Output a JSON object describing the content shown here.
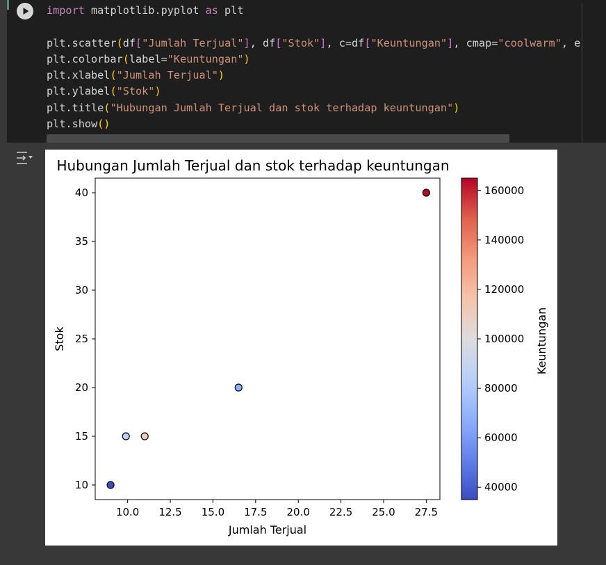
{
  "code_cell": {
    "run_button_icon": "play-icon",
    "lines": [
      [
        {
          "t": "import",
          "c": "kw"
        },
        {
          "t": " matplotlib.pyplot "
        },
        {
          "t": "as",
          "c": "kw"
        },
        {
          "t": " plt"
        }
      ],
      [],
      [
        {
          "t": "plt.scatter"
        },
        {
          "t": "(",
          "c": "p1"
        },
        {
          "t": "df"
        },
        {
          "t": "[",
          "c": "p2"
        },
        {
          "t": "\"Jumlah Terjual\"",
          "c": "str"
        },
        {
          "t": "]",
          "c": "p2"
        },
        {
          "t": ", df"
        },
        {
          "t": "[",
          "c": "p2"
        },
        {
          "t": "\"Stok\"",
          "c": "str"
        },
        {
          "t": "]",
          "c": "p2"
        },
        {
          "t": ", c=df"
        },
        {
          "t": "[",
          "c": "p2"
        },
        {
          "t": "\"Keuntungan\"",
          "c": "str"
        },
        {
          "t": "]",
          "c": "p2"
        },
        {
          "t": ", cmap="
        },
        {
          "t": "\"coolwarm\"",
          "c": "str"
        },
        {
          "t": ", e"
        }
      ],
      [
        {
          "t": "plt.colorbar"
        },
        {
          "t": "(",
          "c": "p1"
        },
        {
          "t": "label="
        },
        {
          "t": "\"Keuntungan\"",
          "c": "str"
        },
        {
          "t": ")",
          "c": "p1"
        }
      ],
      [
        {
          "t": "plt.xlabel"
        },
        {
          "t": "(",
          "c": "p1"
        },
        {
          "t": "\"Jumlah Terjual\"",
          "c": "str"
        },
        {
          "t": ")",
          "c": "p1"
        }
      ],
      [
        {
          "t": "plt.ylabel"
        },
        {
          "t": "(",
          "c": "p1"
        },
        {
          "t": "\"Stok\"",
          "c": "str"
        },
        {
          "t": ")",
          "c": "p1"
        }
      ],
      [
        {
          "t": "plt.title"
        },
        {
          "t": "(",
          "c": "p1"
        },
        {
          "t": "\"Hubungan Jumlah Terjual dan stok terhadap keuntungan\"",
          "c": "str"
        },
        {
          "t": ")",
          "c": "p1"
        }
      ],
      [
        {
          "t": "plt.show"
        },
        {
          "t": "()",
          "c": "p1"
        }
      ]
    ]
  },
  "output": {
    "icon": "output-toggle-icon"
  },
  "colors": {
    "code_background": "#1e1e1e",
    "page_background": "#383838",
    "keyword": "#c586c0",
    "string": "#ce9178",
    "paren": "#ffd700",
    "bracket": "#da70d6"
  },
  "chart_data": {
    "type": "scatter",
    "title": "Hubungan Jumlah Terjual dan stok terhadap keuntungan",
    "xlabel": "Jumlah Terjual",
    "ylabel": "Stok",
    "xlim": [
      8.1,
      28.3
    ],
    "ylim": [
      8.5,
      41.5
    ],
    "xticks": [
      10.0,
      12.5,
      15.0,
      17.5,
      20.0,
      22.5,
      25.0,
      27.5
    ],
    "xtick_labels": [
      "10.0",
      "12.5",
      "15.0",
      "17.5",
      "20.0",
      "22.5",
      "25.0",
      "27.5"
    ],
    "yticks": [
      10,
      15,
      20,
      25,
      30,
      35,
      40
    ],
    "ytick_labels": [
      "10",
      "15",
      "20",
      "25",
      "30",
      "35",
      "40"
    ],
    "grid": false,
    "points": [
      {
        "x": 9.0,
        "y": 10,
        "c": 36000
      },
      {
        "x": 9.9,
        "y": 15,
        "c": 85000
      },
      {
        "x": 11.0,
        "y": 15,
        "c": 110000
      },
      {
        "x": 16.5,
        "y": 20,
        "c": 68000
      },
      {
        "x": 27.5,
        "y": 40,
        "c": 165000
      }
    ],
    "colorbar": {
      "label": "Keuntungan",
      "cmap": "coolwarm",
      "range": [
        35000,
        165000
      ],
      "ticks": [
        40000,
        60000,
        80000,
        100000,
        120000,
        140000,
        160000
      ],
      "tick_labels": [
        "40000",
        "60000",
        "80000",
        "100000",
        "120000",
        "140000",
        "160000"
      ],
      "colors": [
        "#3b4cc0",
        "#6282ea",
        "#8db0fe",
        "#b8d0f9",
        "#dddcdc",
        "#f5c4ac",
        "#f49a7b",
        "#de604d",
        "#b40426"
      ]
    }
  }
}
